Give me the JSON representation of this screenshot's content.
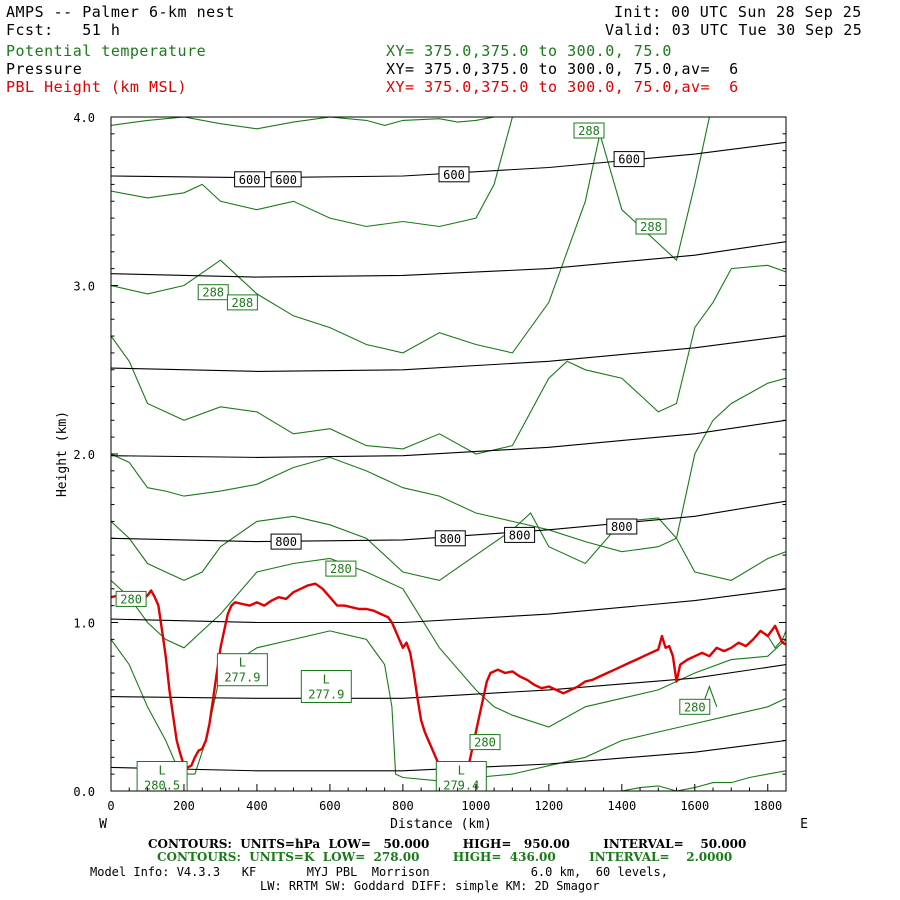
{
  "header": {
    "title": "AMPS -- Palmer 6-km nest",
    "forecast": "Fcst:   51 h",
    "init": "Init: 00 UTC Sun 28 Sep 25",
    "valid": "Valid: 03 UTC Tue 30 Sep 25",
    "legend": [
      {
        "name": "Potential temperature",
        "xy": "XY= 375.0,375.0 to 300.0, 75.0",
        "color": "#1a7a1a"
      },
      {
        "name": "Pressure",
        "xy": "XY= 375.0,375.0 to 300.0, 75.0,av=  6",
        "color": "#000000"
      },
      {
        "name": "PBL Height (km MSL)",
        "xy": "XY= 375.0,375.0 to 300.0, 75.0,av=  6",
        "color": "#e00000"
      }
    ]
  },
  "chart_data": {
    "type": "line",
    "xlabel": "Distance (km)",
    "ylabel": "Height (km)",
    "xlim": [
      0,
      1850
    ],
    "ylim": [
      0.0,
      4.0
    ],
    "x_ticks": [
      "0",
      "200",
      "400",
      "600",
      "800",
      "1000",
      "1200",
      "1400",
      "1600",
      "1800"
    ],
    "y_ticks": [
      "0.0",
      "1.0",
      "2.0",
      "3.0",
      "4.0"
    ],
    "west_label": "W",
    "east_label": "E",
    "pressure_contours": [
      {
        "level": 600,
        "x": [
          0,
          400,
          800,
          1200,
          1600,
          1850
        ],
        "y": [
          3.65,
          3.64,
          3.65,
          3.7,
          3.78,
          3.85
        ],
        "labels": [
          {
            "text": "600",
            "x": 380,
            "y": 3.63
          },
          {
            "text": "600",
            "x": 480,
            "y": 3.63
          },
          {
            "text": "600",
            "x": 940,
            "y": 3.66
          },
          {
            "text": "600",
            "x": 1420,
            "y": 3.75
          }
        ]
      },
      {
        "level": 650,
        "x": [
          0,
          400,
          800,
          1200,
          1600,
          1850
        ],
        "y": [
          3.07,
          3.05,
          3.06,
          3.1,
          3.18,
          3.26
        ],
        "labels": []
      },
      {
        "level": 700,
        "x": [
          0,
          400,
          800,
          1200,
          1600,
          1850
        ],
        "y": [
          2.51,
          2.49,
          2.5,
          2.55,
          2.63,
          2.7
        ],
        "labels": []
      },
      {
        "level": 750,
        "x": [
          0,
          400,
          800,
          1200,
          1600,
          1850
        ],
        "y": [
          1.99,
          1.98,
          1.99,
          2.04,
          2.12,
          2.2
        ],
        "labels": []
      },
      {
        "level": 800,
        "x": [
          0,
          400,
          800,
          1200,
          1600,
          1850
        ],
        "y": [
          1.5,
          1.48,
          1.49,
          1.55,
          1.63,
          1.72
        ],
        "labels": [
          {
            "text": "800",
            "x": 480,
            "y": 1.48
          },
          {
            "text": "800",
            "x": 930,
            "y": 1.5
          },
          {
            "text": "800",
            "x": 1120,
            "y": 1.52
          },
          {
            "text": "800",
            "x": 1400,
            "y": 1.57
          }
        ]
      },
      {
        "level": 850,
        "x": [
          0,
          400,
          800,
          1200,
          1600,
          1850
        ],
        "y": [
          1.02,
          1.0,
          1.0,
          1.05,
          1.13,
          1.2
        ],
        "labels": []
      },
      {
        "level": 900,
        "x": [
          0,
          400,
          800,
          1200,
          1600,
          1850
        ],
        "y": [
          0.56,
          0.55,
          0.55,
          0.6,
          0.67,
          0.75
        ],
        "labels": []
      },
      {
        "level": 950,
        "x": [
          0,
          400,
          800,
          1200,
          1600,
          1850
        ],
        "y": [
          0.14,
          0.12,
          0.12,
          0.16,
          0.23,
          0.3
        ],
        "labels": []
      }
    ],
    "theta_contours": [
      {
        "x": [
          0,
          100,
          200,
          300,
          400,
          500,
          600,
          700,
          750,
          800,
          900,
          950,
          1000,
          1050,
          1080
        ],
        "y": [
          3.95,
          3.98,
          4.0,
          3.96,
          3.93,
          3.97,
          4.0,
          3.98,
          3.95,
          3.98,
          3.99,
          3.97,
          3.98,
          4.0,
          4.0
        ]
      },
      {
        "x": [
          0,
          100,
          200,
          250,
          300,
          400,
          500,
          600,
          700,
          800,
          900,
          1000,
          1050,
          1100
        ],
        "y": [
          3.56,
          3.52,
          3.55,
          3.6,
          3.5,
          3.45,
          3.5,
          3.4,
          3.35,
          3.38,
          3.35,
          3.4,
          3.6,
          4.0
        ]
      },
      {
        "x": [
          0,
          100,
          200,
          300,
          400,
          500,
          600,
          700,
          800,
          900,
          1000,
          1100,
          1200,
          1300,
          1340,
          1400,
          1500,
          1550,
          1600,
          1640
        ],
        "y": [
          3.0,
          2.95,
          3.0,
          3.15,
          2.95,
          2.82,
          2.75,
          2.65,
          2.6,
          2.72,
          2.65,
          2.6,
          2.9,
          3.5,
          3.9,
          3.45,
          3.25,
          3.15,
          3.6,
          4.0
        ]
      },
      {
        "x": [
          0,
          50,
          100,
          150,
          200,
          300,
          400,
          500,
          600,
          700,
          800,
          900,
          1000,
          1100,
          1200,
          1250,
          1300,
          1400,
          1450,
          1500,
          1550,
          1600,
          1650,
          1700,
          1800,
          1850
        ],
        "y": [
          2.7,
          2.55,
          2.3,
          2.25,
          2.2,
          2.28,
          2.25,
          2.12,
          2.15,
          2.05,
          2.03,
          2.12,
          2.0,
          2.05,
          2.45,
          2.55,
          2.5,
          2.45,
          2.35,
          2.25,
          2.3,
          2.75,
          2.9,
          3.1,
          3.12,
          3.08
        ]
      },
      {
        "x": [
          0,
          50,
          100,
          150,
          200,
          300,
          400,
          500,
          600,
          700,
          750,
          800,
          900,
          1000,
          1100,
          1200,
          1300,
          1400,
          1500,
          1550,
          1600,
          1650,
          1700,
          1800,
          1850
        ],
        "y": [
          2.0,
          1.95,
          1.8,
          1.78,
          1.75,
          1.78,
          1.82,
          1.92,
          1.98,
          1.9,
          1.85,
          1.8,
          1.75,
          1.65,
          1.6,
          1.55,
          1.48,
          1.42,
          1.45,
          1.5,
          2.0,
          2.2,
          2.3,
          2.42,
          2.45
        ]
      },
      {
        "x": [
          0,
          50,
          100,
          150,
          200,
          250,
          300,
          400,
          500,
          600,
          700,
          800,
          900,
          1000,
          1100,
          1150,
          1200,
          1300,
          1400,
          1500,
          1550,
          1600,
          1700,
          1800,
          1850
        ],
        "y": [
          1.6,
          1.5,
          1.35,
          1.3,
          1.25,
          1.3,
          1.45,
          1.6,
          1.63,
          1.58,
          1.5,
          1.3,
          1.25,
          1.4,
          1.55,
          1.65,
          1.45,
          1.35,
          1.6,
          1.62,
          1.5,
          1.3,
          1.25,
          1.38,
          1.42
        ]
      },
      {
        "x": [
          0,
          50,
          100,
          150,
          200,
          250,
          300,
          400,
          500,
          600,
          700,
          800,
          900,
          1000,
          1050,
          1100,
          1200,
          1300,
          1400,
          1500,
          1600,
          1700,
          1800,
          1850
        ],
        "y": [
          1.25,
          1.15,
          1.0,
          0.9,
          0.85,
          0.95,
          1.05,
          1.3,
          1.35,
          1.38,
          1.3,
          1.2,
          0.85,
          0.6,
          0.5,
          0.45,
          0.38,
          0.5,
          0.55,
          0.6,
          0.7,
          0.78,
          0.8,
          0.9
        ]
      },
      {
        "x": [
          0,
          50,
          100,
          150,
          180,
          200,
          230,
          260,
          280,
          300,
          350,
          400,
          500,
          600,
          700,
          750,
          770,
          780,
          800,
          900,
          950,
          1000,
          1100,
          1200,
          1300,
          1400,
          1500,
          1600,
          1700,
          1800,
          1850
        ],
        "y": [
          0.9,
          0.75,
          0.5,
          0.3,
          0.15,
          0.1,
          0.1,
          0.3,
          0.5,
          0.7,
          0.78,
          0.85,
          0.9,
          0.95,
          0.9,
          0.75,
          0.5,
          0.1,
          0.08,
          0.06,
          0.07,
          0.08,
          0.1,
          0.15,
          0.2,
          0.3,
          0.35,
          0.4,
          0.45,
          0.5,
          0.55
        ]
      },
      {
        "x": [
          1620,
          1640,
          1660
        ],
        "y": [
          0.5,
          0.62,
          0.5
        ]
      },
      {
        "x": [
          1780,
          1800,
          1820,
          1840,
          1850
        ],
        "y": [
          0.95,
          0.92,
          0.85,
          0.9,
          0.95
        ]
      },
      {
        "x": [
          1400,
          1450,
          1500,
          1550,
          1600,
          1650,
          1700,
          1750,
          1800,
          1850
        ],
        "y": [
          0.0,
          0.02,
          0.03,
          0.0,
          0.02,
          0.05,
          0.05,
          0.08,
          0.1,
          0.12
        ]
      }
    ],
    "theta_labels": [
      {
        "text": "288",
        "x": 1310,
        "y": 3.92
      },
      {
        "text": "288",
        "x": 1480,
        "y": 3.35
      },
      {
        "text": "288",
        "x": 280,
        "y": 2.96
      },
      {
        "text": "288",
        "x": 360,
        "y": 2.9
      },
      {
        "text": "280",
        "x": 630,
        "y": 1.32
      },
      {
        "text": "280",
        "x": 55,
        "y": 1.14
      },
      {
        "text": "280",
        "x": 1025,
        "y": 0.29
      },
      {
        "text": "280",
        "x": 1600,
        "y": 0.5
      }
    ],
    "low_labels": [
      {
        "text": "L",
        "value": "277.9",
        "x": 360,
        "y": 0.72
      },
      {
        "text": "L",
        "value": "277.9",
        "x": 590,
        "y": 0.62
      },
      {
        "text": "L",
        "value": "280.5",
        "x": 140,
        "y": 0.08
      },
      {
        "text": "L",
        "value": "279.4",
        "x": 960,
        "y": 0.08
      }
    ],
    "pbl_height": {
      "x": [
        0,
        20,
        40,
        60,
        70,
        80,
        90,
        100,
        110,
        120,
        130,
        140,
        150,
        160,
        170,
        180,
        190,
        200,
        210,
        220,
        230,
        240,
        250,
        260,
        270,
        280,
        290,
        300,
        310,
        320,
        330,
        340,
        360,
        380,
        400,
        420,
        440,
        460,
        480,
        500,
        520,
        540,
        560,
        580,
        600,
        620,
        640,
        660,
        680,
        700,
        720,
        740,
        760,
        770,
        780,
        790,
        800,
        810,
        820,
        830,
        840,
        850,
        860,
        870,
        880,
        890,
        900,
        910,
        920,
        930,
        940,
        950,
        960,
        970,
        980,
        990,
        1000,
        1010,
        1020,
        1030,
        1040,
        1060,
        1080,
        1100,
        1120,
        1140,
        1160,
        1180,
        1200,
        1220,
        1240,
        1260,
        1280,
        1300,
        1320,
        1340,
        1360,
        1380,
        1400,
        1420,
        1440,
        1460,
        1480,
        1500,
        1510,
        1520,
        1530,
        1540,
        1550,
        1560,
        1580,
        1600,
        1620,
        1640,
        1660,
        1680,
        1700,
        1720,
        1740,
        1760,
        1780,
        1800,
        1820,
        1840,
        1850
      ],
      "y": [
        1.15,
        1.16,
        1.14,
        1.17,
        1.12,
        1.18,
        1.14,
        1.16,
        1.19,
        1.15,
        1.1,
        0.95,
        0.8,
        0.6,
        0.45,
        0.3,
        0.22,
        0.15,
        0.14,
        0.15,
        0.2,
        0.24,
        0.25,
        0.3,
        0.4,
        0.55,
        0.7,
        0.85,
        0.95,
        1.05,
        1.1,
        1.12,
        1.11,
        1.1,
        1.12,
        1.1,
        1.13,
        1.15,
        1.14,
        1.18,
        1.2,
        1.22,
        1.23,
        1.2,
        1.15,
        1.1,
        1.1,
        1.09,
        1.08,
        1.08,
        1.07,
        1.05,
        1.03,
        1.0,
        0.95,
        0.9,
        0.85,
        0.88,
        0.82,
        0.7,
        0.55,
        0.42,
        0.35,
        0.3,
        0.25,
        0.2,
        0.15,
        0.12,
        0.1,
        0.08,
        0.06,
        0.07,
        0.06,
        0.08,
        0.15,
        0.25,
        0.35,
        0.45,
        0.55,
        0.65,
        0.7,
        0.72,
        0.7,
        0.71,
        0.68,
        0.66,
        0.63,
        0.61,
        0.62,
        0.6,
        0.58,
        0.6,
        0.62,
        0.65,
        0.66,
        0.68,
        0.7,
        0.72,
        0.74,
        0.76,
        0.78,
        0.8,
        0.82,
        0.84,
        0.92,
        0.85,
        0.86,
        0.8,
        0.65,
        0.75,
        0.78,
        0.8,
        0.82,
        0.8,
        0.85,
        0.83,
        0.85,
        0.88,
        0.86,
        0.9,
        0.95,
        0.92,
        0.98,
        0.88,
        0.87
      ]
    }
  },
  "footer": {
    "pressure_contours": "CONTOURS:  UNITS=hPa  LOW=   50.000        HIGH=   950.00        INTERVAL=    50.000",
    "theta_contours": "CONTOURS:  UNITS=K  LOW=  278.00        HIGH=  436.00        INTERVAL=    2.0000",
    "model_info": "Model Info: V4.3.3   KF       MYJ PBL  Morrison              6.0 km,  60 levels,",
    "physics": "LW: RRTM SW: Goddard DIFF: simple KM: 2D Smagor"
  },
  "colors": {
    "pressure": "#000000",
    "theta": "#1a7a1a",
    "pbl": "#e00000"
  }
}
